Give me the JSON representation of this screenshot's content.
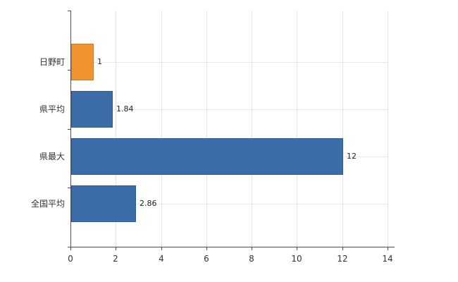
{
  "chart_data": {
    "type": "bar",
    "orientation": "horizontal",
    "title": "",
    "xlabel": "",
    "ylabel": "",
    "categories": [
      "日野町",
      "県平均",
      "県最大",
      "全国平均"
    ],
    "values": [
      1,
      1.84,
      12,
      2.86
    ],
    "value_labels": [
      "1",
      "1.84",
      "12",
      "2.86"
    ],
    "bar_colors": [
      "#f0922f",
      "#3c6da8",
      "#3c6da8",
      "#3c6da8"
    ],
    "xlim": [
      0,
      14
    ],
    "x_ticks": [
      0,
      2,
      4,
      6,
      8,
      10,
      12,
      14
    ],
    "grid": true,
    "legend": "none"
  },
  "colors": {
    "background": "#ffffff",
    "axis": "#4d4d4d",
    "grid_vertical": "#e3e3e3",
    "grid_horizontal": "#e9e9e9",
    "text": "#333333",
    "bar_blue": "#3c6da8",
    "bar_orange": "#f0922f"
  }
}
